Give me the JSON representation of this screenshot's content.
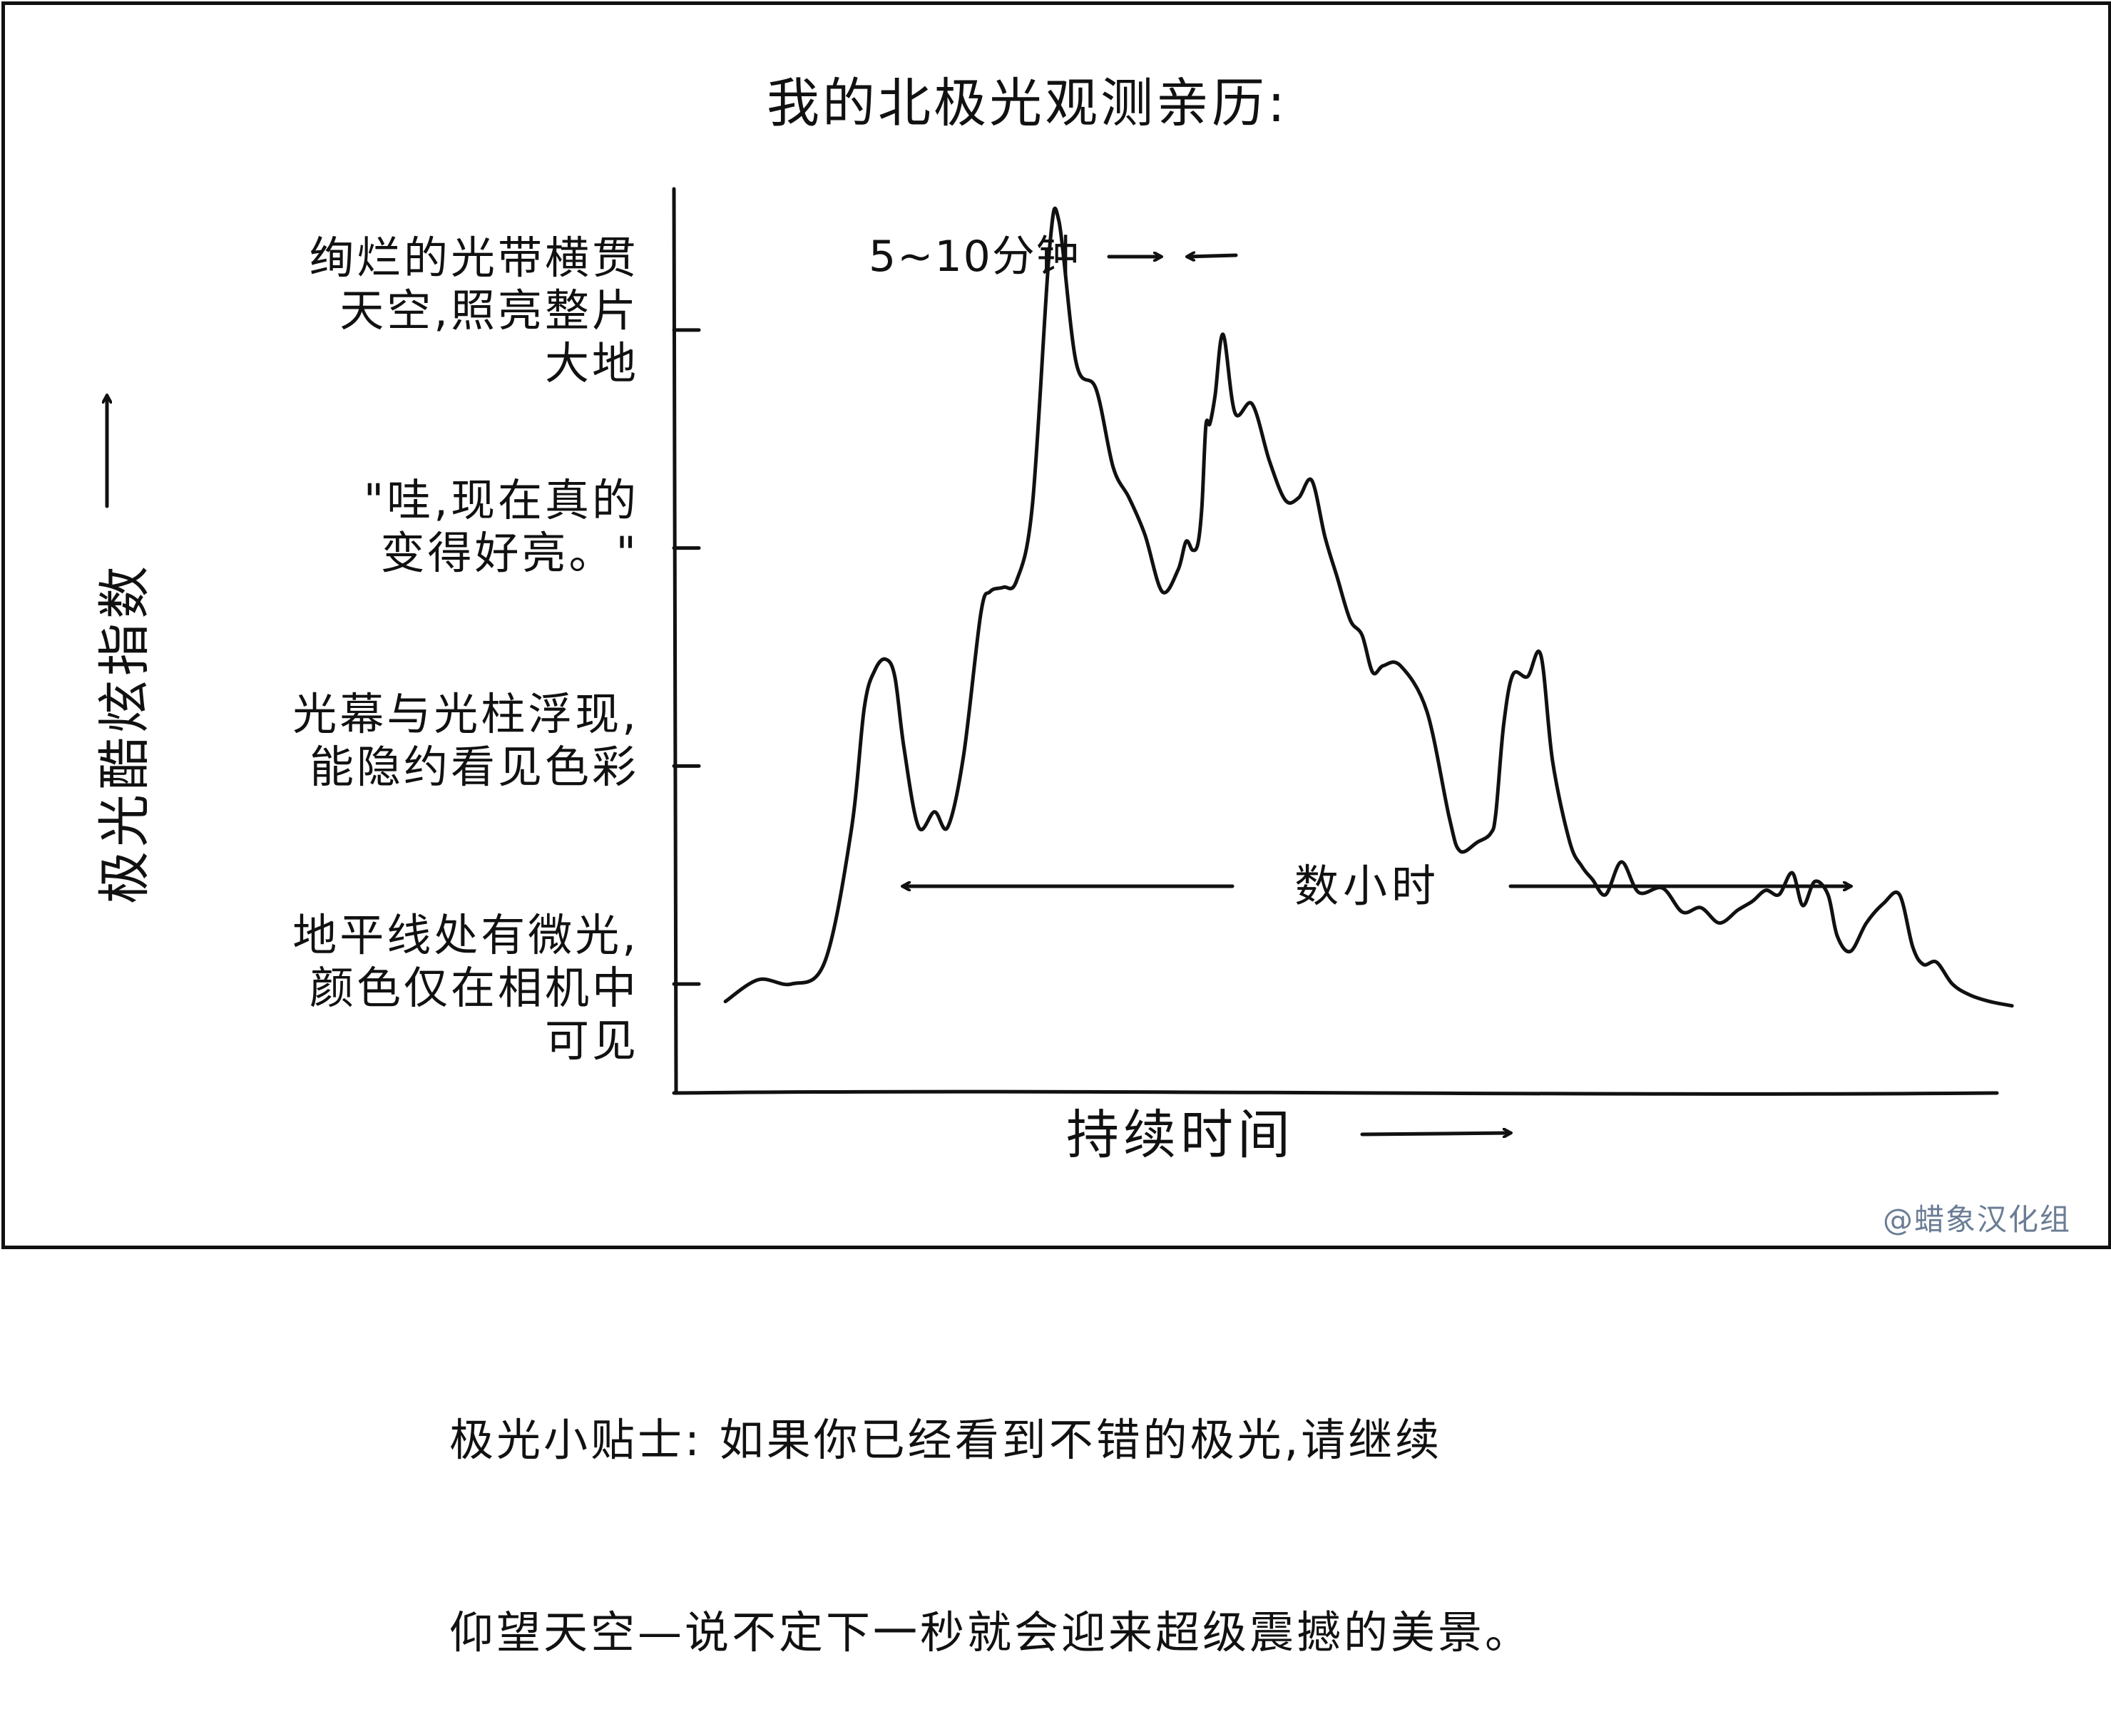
{
  "title": "我的北极光观测亲历:",
  "credit": "@蜡象汉化组",
  "caption": [
    "极光小贴士: 如果你已经看到不错的极光,请继续",
    "仰望天空—说不定下一秒就会迎来超级震撼的美景。"
  ],
  "chart_data": {
    "type": "line",
    "title": "我的北极光观测亲历:",
    "xlabel": "持续时间",
    "ylabel": "极光酷炫指数",
    "xlim": [
      0,
      100
    ],
    "ylim": [
      0,
      4
    ],
    "y_levels": [
      {
        "value": 0.5,
        "label": [
          "地平线处有微光,",
          "颜色仅在相机中",
          "可见"
        ]
      },
      {
        "value": 1.5,
        "label": [
          "光幕与光柱浮现,",
          "能隐约看见色彩"
        ]
      },
      {
        "value": 2.5,
        "label": [
          "\"哇,现在真的",
          "变得好亮。\""
        ]
      },
      {
        "value": 3.5,
        "label": [
          "绚烂的光带横贯",
          "天空,照亮整片",
          "大地"
        ]
      }
    ],
    "series": [
      {
        "x": [
          2,
          4.5,
          7,
          9.5,
          11.5,
          12.5,
          13.3,
          14.1,
          14.8,
          15.5,
          16.6,
          17.8,
          18.8,
          20,
          21.3,
          22,
          23,
          24,
          25.2,
          26.5,
          27.2,
          28.5,
          30,
          31.3,
          32.5,
          33.7,
          35,
          36.2,
          36.8,
          37.3,
          37.7,
          38,
          38.3,
          38.6,
          39,
          39.6,
          40.5,
          41.8,
          43.1,
          44.3,
          45.3,
          46.3,
          47.3,
          48.2,
          49.2,
          50.1,
          50.9,
          51.7,
          53,
          55,
          56.7,
          57.5,
          58.8,
          59.8,
          60.2,
          60.8,
          61.5,
          62.6,
          63.6,
          64.5,
          65.8,
          66.7,
          67.5,
          68.5,
          69.7,
          71,
          72.8,
          74.3,
          75.7,
          77.1,
          78.5,
          79.6,
          80.6,
          81.6,
          82.6,
          83.4,
          84.3,
          85.3,
          86,
          87,
          88.2,
          89.5,
          90.7,
          91.7,
          92.5,
          93.5,
          94.7,
          96,
          97.5,
          99.2
        ],
        "y": [
          0.42,
          0.52,
          0.5,
          0.6,
          1.2,
          1.77,
          1.94,
          1.99,
          1.91,
          1.58,
          1.22,
          1.29,
          1.22,
          1.55,
          2.2,
          2.3,
          2.32,
          2.35,
          2.7,
          3.88,
          4.0,
          3.35,
          3.23,
          2.87,
          2.73,
          2.56,
          2.3,
          2.4,
          2.53,
          2.49,
          2.52,
          2.69,
          3.06,
          3.07,
          3.2,
          3.48,
          3.12,
          3.16,
          2.9,
          2.72,
          2.73,
          2.81,
          2.55,
          2.37,
          2.17,
          2.1,
          1.93,
          1.96,
          1.96,
          1.75,
          1.26,
          1.11,
          1.15,
          1.19,
          1.28,
          1.69,
          1.92,
          1.91,
          2.01,
          1.52,
          1.15,
          1.04,
          0.98,
          0.91,
          1.06,
          0.92,
          0.94,
          0.83,
          0.85,
          0.78,
          0.84,
          0.88,
          0.93,
          0.91,
          1.01,
          0.86,
          0.97,
          0.91,
          0.72,
          0.65,
          0.78,
          0.87,
          0.91,
          0.67,
          0.59,
          0.6,
          0.5,
          0.45,
          0.42,
          0.4
        ]
      }
    ],
    "annotations": {
      "peak_width": "5~10分钟",
      "span": "数小时"
    },
    "grid": false,
    "legend": "none"
  }
}
